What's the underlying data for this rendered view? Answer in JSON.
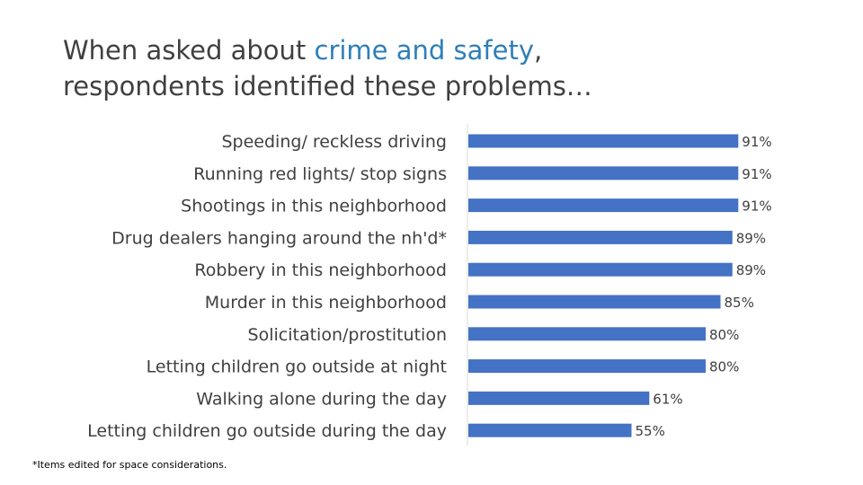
{
  "title": {
    "prefix": "When asked about ",
    "highlight": "crime and safety",
    "suffix": ",",
    "line2": "respondents identified these problems…"
  },
  "footnote": "*Items edited for space considerations.",
  "colors": {
    "bar": "#4472c4",
    "label": "#404040",
    "highlight": "#2e7fb8",
    "axis": "#d9d9d9"
  },
  "chart_data": {
    "type": "bar",
    "orientation": "horizontal",
    "categories": [
      "Speeding/ reckless driving",
      "Running red lights/ stop signs",
      "Shootings in this neighborhood",
      "Drug dealers hanging around the nh'd*",
      "Robbery in this neighborhood",
      "Murder in this neighborhood",
      "Solicitation/prostitution",
      "Letting children go outside at night",
      "Walking alone during the day",
      "Letting children go outside during the day"
    ],
    "values": [
      91,
      91,
      91,
      89,
      89,
      85,
      80,
      80,
      61,
      55
    ],
    "value_labels": [
      "91%",
      "91%",
      "91%",
      "89%",
      "89%",
      "85%",
      "80%",
      "80%",
      "61%",
      "55%"
    ],
    "xlim": [
      0,
      100
    ],
    "grid": false,
    "legend": "none"
  }
}
